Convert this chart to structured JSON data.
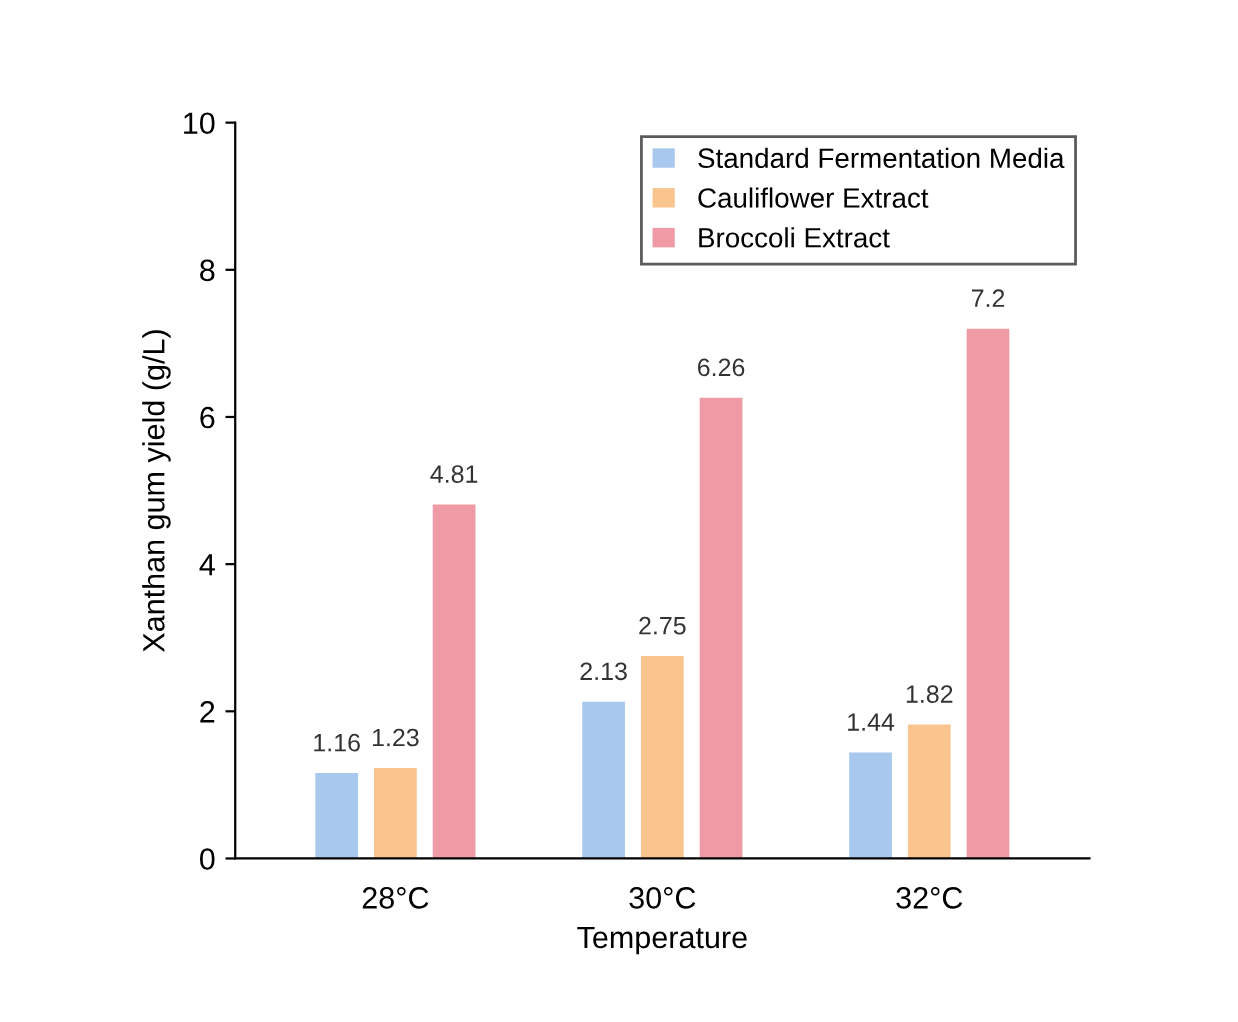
{
  "chart_data": {
    "type": "bar",
    "xlabel": "Temperature",
    "ylabel": "Xanthan gum yield (g/L)",
    "categories": [
      "28°C",
      "30°C",
      "32°C"
    ],
    "series": [
      {
        "name": "Standard Fermentation Media",
        "color": "#a9c8ee",
        "values": [
          1.16,
          2.13,
          1.44
        ]
      },
      {
        "name": "Cauliflower Extract",
        "color": "#f9c48e",
        "values": [
          1.23,
          2.75,
          1.82
        ]
      },
      {
        "name": "Broccoli Extract",
        "color": "#ef9aa4",
        "values": [
          4.81,
          6.26,
          7.2
        ]
      }
    ],
    "ylim": [
      0,
      10
    ],
    "yticks": [
      0,
      2,
      4,
      6,
      8,
      10
    ],
    "data_labels": true,
    "legend": "top right",
    "grid": false
  }
}
